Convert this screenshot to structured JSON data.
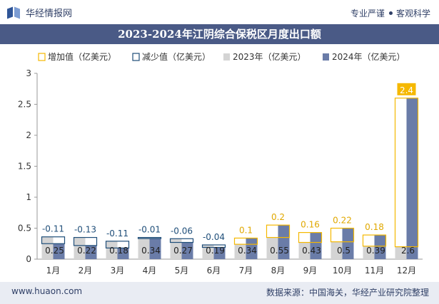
{
  "header": {
    "brand": "华经情报网",
    "slogan_left": "专业严谨",
    "slogan_right": "客观科学"
  },
  "colors": {
    "increase": "#f5b800",
    "decrease": "#1f4e79",
    "y2023": "#d4d4d4",
    "y2024": "#6a7ca8",
    "title_band": "#4a5a86"
  },
  "footer": {
    "site": "www.huaon.com",
    "source": "数据来源：中国海关，华经产业研究院整理"
  },
  "chart_data": {
    "type": "bar",
    "title": "2023-2024年江阴综合保税区月度出口额",
    "xlabel": "",
    "ylabel": "",
    "ylim": [
      0,
      3
    ],
    "yticks": [
      0,
      0.5,
      1,
      1.5,
      2,
      2.5,
      3
    ],
    "grid": false,
    "legend_position": "top",
    "categories": [
      "1月",
      "2月",
      "3月",
      "4月",
      "5月",
      "6月",
      "7月",
      "8月",
      "9月",
      "10月",
      "11月",
      "12月"
    ],
    "series": [
      {
        "name": "增加值（亿美元）",
        "values": [
          null,
          null,
          null,
          null,
          null,
          null,
          0.1,
          0.2,
          0.16,
          0.22,
          0.18,
          2.4
        ]
      },
      {
        "name": "减少值（亿美元）",
        "values": [
          -0.11,
          -0.13,
          -0.11,
          -0.01,
          -0.06,
          -0.04,
          null,
          null,
          null,
          null,
          null,
          null
        ]
      },
      {
        "name": "2023年（亿美元）",
        "values": [
          0.36,
          0.35,
          0.29,
          0.35,
          0.33,
          0.23,
          0.24,
          0.35,
          0.27,
          0.28,
          0.21,
          0.2
        ]
      },
      {
        "name": "2024年（亿美元）",
        "values": [
          0.25,
          0.22,
          0.18,
          0.34,
          0.27,
          0.19,
          0.34,
          0.55,
          0.43,
          0.5,
          0.39,
          2.6
        ]
      }
    ],
    "change_labels": [
      "-0.11",
      "-0.13",
      "-0.11",
      "-0.01",
      "-0.06",
      "-0.04",
      "0.1",
      "0.2",
      "0.16",
      "0.22",
      "0.18",
      "2.4"
    ],
    "value_labels": [
      "0.25",
      "0.22",
      "0.18",
      "0.34",
      "0.27",
      "0.19",
      "0.34",
      "0.55",
      "0.43",
      "0.5",
      "0.39",
      "2.6"
    ]
  }
}
